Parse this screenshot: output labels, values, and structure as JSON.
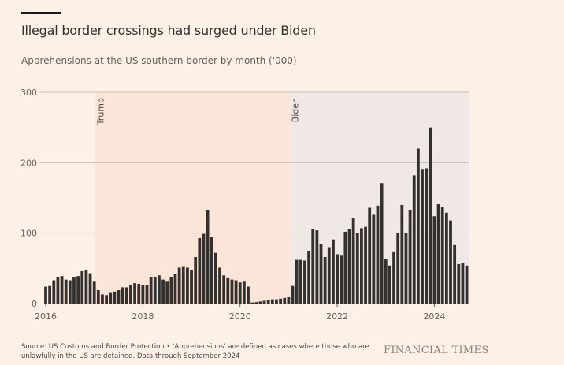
{
  "header": {
    "title": "Illegal border crossings had surged under Biden",
    "subtitle": "Apprehensions at the US southern border by month ('000)"
  },
  "footer": {
    "source": "Source: US Customs and Border Protection • 'Apprehensions' are defined as cases where those who are unlawfully in the US are detained. Data through September 2024",
    "brand": "FINANCIAL TIMES"
  },
  "colors": {
    "background": "#fdf0e6",
    "bar": "#33302e",
    "trump_shade": "#fbe4d8",
    "biden_shade": "#f0e8e4",
    "gridline": "#c9bfb8"
  },
  "chart_data": {
    "type": "bar",
    "title": "Illegal border crossings had surged under Biden",
    "subtitle": "Apprehensions at the US southern border by month ('000)",
    "xlabel": "",
    "ylabel": "",
    "ylim": [
      0,
      300
    ],
    "yticks": [
      0,
      100,
      200,
      300
    ],
    "xticks": [
      "2016",
      "2018",
      "2020",
      "2022",
      "2024"
    ],
    "grid": true,
    "start": "2016-01",
    "end": "2024-09",
    "frequency": "monthly",
    "annotations": [
      {
        "label": "Trump",
        "start": "2017-01",
        "end": "2021-01"
      },
      {
        "label": "Biden",
        "start": "2021-01",
        "end": "2024-09"
      }
    ],
    "values": [
      24,
      25,
      33,
      37,
      39,
      34,
      33,
      37,
      39,
      46,
      47,
      43,
      31,
      19,
      13,
      12,
      15,
      17,
      19,
      23,
      23,
      26,
      29,
      28,
      26,
      26,
      37,
      38,
      40,
      34,
      31,
      38,
      42,
      51,
      52,
      51,
      48,
      66,
      93,
      99,
      133,
      94,
      72,
      51,
      40,
      36,
      34,
      33,
      30,
      31,
      24,
      1.5,
      2,
      3,
      4,
      5,
      6,
      6,
      7,
      8,
      9,
      25,
      62,
      62,
      61,
      75,
      106,
      104,
      85,
      66,
      80,
      91,
      70,
      68,
      102,
      106,
      121,
      100,
      107,
      109,
      136,
      126,
      139,
      171,
      63,
      54,
      73,
      100,
      140,
      100,
      133,
      182,
      220,
      190,
      192,
      250,
      124,
      141,
      137,
      129,
      118,
      83,
      56,
      58,
      54
    ]
  }
}
